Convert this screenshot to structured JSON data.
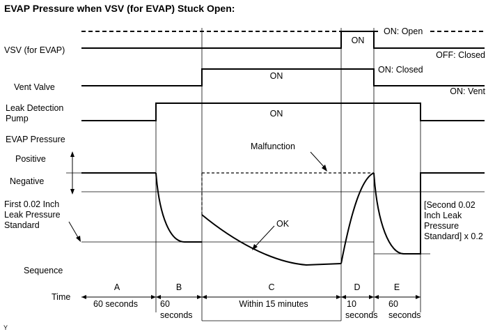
{
  "title": "EVAP Pressure when VSV (for EVAP) Stuck Open:",
  "signals": {
    "vsv": "VSV (for EVAP)",
    "vent_valve": "Vent Valve",
    "pump_line1": "Leak Detection",
    "pump_line2": "Pump",
    "evap_pressure": "EVAP Pressure",
    "positive": "Positive",
    "negative": "Negative",
    "first_std_line1": "First 0.02 Inch",
    "first_std_line2": "Leak Pressure",
    "first_std_line3": "Standard",
    "sequence": "Sequence",
    "time": "Time"
  },
  "states": {
    "vsv_on": "ON",
    "vsv_on_open": "ON: Open",
    "vsv_off_closed": "OFF: Closed",
    "vent_on": "ON",
    "vent_on_closed": "ON: Closed",
    "vent_on_vent": "ON: Vent",
    "pump_on": "ON"
  },
  "annotations": {
    "malfunction": "Malfunction",
    "ok": "OK",
    "second_std_line1": "[Second 0.02",
    "second_std_line2": "Inch Leak",
    "second_std_line3": "Pressure",
    "second_std_line4": "Standard] x 0.2"
  },
  "sequence": [
    {
      "step": "A",
      "time_line1": "60 seconds",
      "time_line2": ""
    },
    {
      "step": "B",
      "time_line1": "60",
      "time_line2": "seconds"
    },
    {
      "step": "C",
      "time_line1": "Within 15 minutes",
      "time_line2": ""
    },
    {
      "step": "D",
      "time_line1": "10",
      "time_line2": "seconds"
    },
    {
      "step": "E",
      "time_line1": "60",
      "time_line2": "seconds"
    }
  ],
  "footer_mark": "Y"
}
